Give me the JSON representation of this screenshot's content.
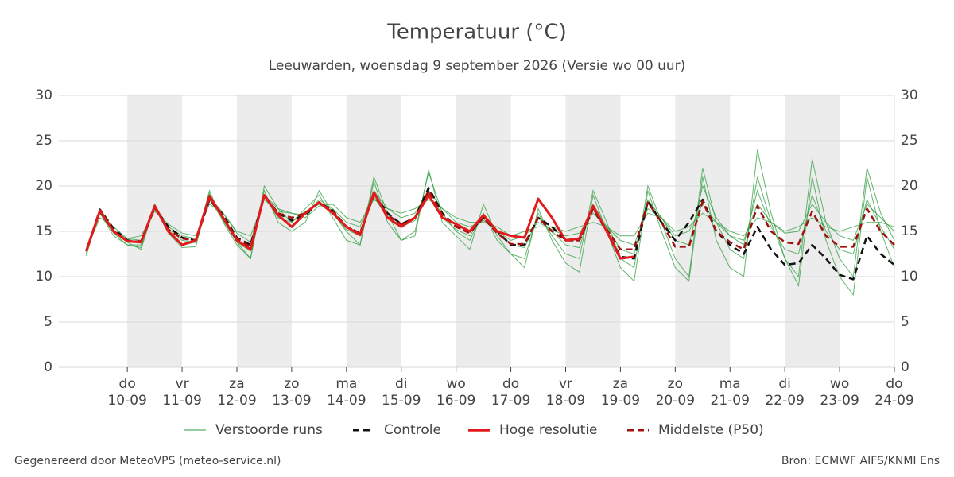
{
  "chart_data": {
    "type": "line",
    "title": "Temperatuur (°C)",
    "subtitle": "Leeuwarden, woensdag  9 september 2026 (Versie wo 00 uur)",
    "footer_left": "Gegenereerd door MeteoVPS (meteo-service.nl)",
    "footer_right": "Bron: ECMWF AIFS/KNMI Ens",
    "grid": true,
    "legend": "bottom",
    "xlim": [
      8.75,
      24
    ],
    "xticks": [
      {
        "value": 10,
        "label": [
          "do",
          "10-09"
        ]
      },
      {
        "value": 11,
        "label": [
          "vr",
          "11-09"
        ]
      },
      {
        "value": 12,
        "label": [
          "za",
          "12-09"
        ]
      },
      {
        "value": 13,
        "label": [
          "zo",
          "13-09"
        ]
      },
      {
        "value": 14,
        "label": [
          "ma",
          "14-09"
        ]
      },
      {
        "value": 15,
        "label": [
          "di",
          "15-09"
        ]
      },
      {
        "value": 16,
        "label": [
          "wo",
          "16-09"
        ]
      },
      {
        "value": 17,
        "label": [
          "do",
          "17-09"
        ]
      },
      {
        "value": 18,
        "label": [
          "vr",
          "18-09"
        ]
      },
      {
        "value": 19,
        "label": [
          "za",
          "19-09"
        ]
      },
      {
        "value": 20,
        "label": [
          "zo",
          "20-09"
        ]
      },
      {
        "value": 21,
        "label": [
          "ma",
          "21-09"
        ]
      },
      {
        "value": 22,
        "label": [
          "di",
          "22-09"
        ]
      },
      {
        "value": 23,
        "label": [
          "wo",
          "23-09"
        ]
      },
      {
        "value": 24,
        "label": [
          "do",
          "24-09"
        ]
      }
    ],
    "ylim": [
      0,
      30
    ],
    "yticks": [
      0,
      5,
      10,
      15,
      20,
      25,
      30
    ],
    "y2lim": [
      0,
      30
    ],
    "y2ticks": [
      0,
      5,
      10,
      15,
      20,
      25,
      30
    ],
    "x": [
      9.25,
      9.5,
      9.75,
      10,
      10.25,
      10.5,
      10.75,
      11,
      11.25,
      11.5,
      11.75,
      12,
      12.25,
      12.5,
      12.75,
      13,
      13.25,
      13.5,
      13.75,
      14,
      14.25,
      14.5,
      14.75,
      15,
      15.25,
      15.5,
      15.75,
      16,
      16.25,
      16.5,
      16.75,
      17,
      17.25,
      17.5,
      17.75,
      18,
      18.25,
      18.5,
      18.75,
      19,
      19.25,
      19.5,
      19.75,
      20,
      20.25,
      20.5,
      20.75,
      21,
      21.25,
      21.5,
      21.75,
      22,
      22.25,
      22.5,
      22.75,
      23,
      23.25,
      23.5,
      23.75,
      24
    ],
    "ensemble": {
      "name": "Verstoorde runs",
      "color": "#2e9e3e",
      "members": [
        [
          12.5,
          17,
          14.8,
          13.5,
          13.2,
          18,
          15,
          13.5,
          13.8,
          19.5,
          16,
          13.5,
          12,
          20,
          17.5,
          16,
          17.5,
          19,
          16.5,
          14,
          13.5,
          21,
          17,
          14,
          15,
          21.5,
          17,
          15,
          14,
          17,
          14,
          12.5,
          12,
          17,
          14.5,
          12.5,
          12,
          19.5,
          16,
          12,
          11,
          20,
          16,
          12,
          10,
          22,
          16,
          13,
          12,
          21,
          16,
          12,
          10,
          23,
          16,
          12,
          10,
          22,
          17,
          14
        ],
        [
          13,
          16.5,
          15.5,
          14.2,
          14.5,
          17.2,
          15.8,
          14.8,
          14.5,
          18,
          17,
          15,
          14.5,
          18.5,
          17.2,
          17,
          16.5,
          17.8,
          18,
          16.5,
          16,
          18.5,
          17.5,
          17,
          17.5,
          18.5,
          17.5,
          16.5,
          16,
          16,
          15.5,
          14.5,
          15,
          15.5,
          15.5,
          15,
          15.5,
          16,
          15.5,
          14.5,
          14.5,
          17,
          16.5,
          15,
          15.5,
          17,
          16,
          15,
          14.5,
          16.5,
          16,
          15,
          15.5,
          16.5,
          15.5,
          15,
          15.5,
          16,
          16,
          15.5
        ],
        [
          12.3,
          17.5,
          15.2,
          13.8,
          13,
          17.8,
          14.8,
          13.2,
          13.3,
          19.2,
          16.2,
          13.8,
          12,
          19.5,
          16,
          15,
          16,
          19.5,
          17,
          15,
          13.5,
          20.5,
          16,
          14,
          14.5,
          21.8,
          16,
          14.5,
          13,
          18,
          14.5,
          12.5,
          11,
          17.5,
          14,
          11.5,
          10.5,
          19,
          15,
          11,
          9.5,
          19.5,
          15,
          11,
          9.5,
          21,
          14,
          11,
          10,
          24,
          17,
          12,
          9,
          21,
          14,
          10,
          8,
          21,
          15,
          11
        ],
        [
          13.2,
          17.2,
          15,
          14.2,
          14,
          17.5,
          15.5,
          14.5,
          14.2,
          18.8,
          17,
          14.8,
          13.8,
          19,
          17.5,
          17,
          16.8,
          18.5,
          17.5,
          16,
          15.5,
          19.5,
          17.5,
          16.5,
          17,
          19.5,
          17.5,
          16,
          15.5,
          16.2,
          15,
          14,
          14.5,
          16,
          15.2,
          14.5,
          14.8,
          17,
          15.5,
          14,
          13.5,
          17.5,
          16.5,
          14.5,
          15,
          18,
          16,
          14.5,
          14,
          18,
          16,
          14.8,
          15,
          18,
          16,
          14.5,
          14,
          18,
          16.5,
          15
        ],
        [
          12.6,
          17,
          14.5,
          13.5,
          13.5,
          18,
          15.3,
          14,
          13.8,
          18.5,
          16.2,
          13.8,
          12.8,
          18.8,
          16.5,
          16,
          17.2,
          18,
          17,
          15.2,
          14.5,
          18.8,
          16.5,
          15.5,
          16.2,
          19.2,
          16.5,
          15.2,
          14.5,
          16.8,
          15,
          13.5,
          13.2,
          16.5,
          15,
          13.5,
          13.2,
          18,
          15.5,
          13,
          12.5,
          18.5,
          16.5,
          14,
          13.5,
          20,
          16.5,
          14.5,
          13.5,
          19.5,
          15.5,
          13,
          12.5,
          19,
          15,
          13,
          12.5,
          18.5,
          15.5,
          13
        ]
      ]
    },
    "series": [
      {
        "name": "Controle",
        "color": "#111111",
        "dash": "dashed",
        "values": [
          12.8,
          17.4,
          15.3,
          14,
          13.8,
          17.6,
          15.5,
          14.3,
          14,
          18.5,
          16.8,
          14.3,
          13.5,
          19,
          17,
          16.2,
          16.8,
          18.2,
          17.3,
          15.5,
          14.8,
          19.2,
          17,
          15.8,
          16.5,
          19.8,
          17,
          15.5,
          15,
          16.5,
          15,
          13.5,
          13.5,
          16.5,
          15.5,
          14,
          14,
          17.5,
          15,
          12.2,
          12,
          18.3,
          16,
          14,
          16,
          18.5,
          15,
          13.5,
          12.5,
          15.5,
          13,
          11.3,
          11.5,
          13.5,
          12,
          10.2,
          9.7,
          14.5,
          12.5,
          11.3
        ]
      },
      {
        "name": "Hoge resolutie",
        "color": "#e3191b",
        "dash": "solid",
        "values": [
          12.8,
          17.3,
          15,
          13.9,
          13.8,
          17.8,
          15,
          13.5,
          14,
          18.9,
          16.5,
          14,
          13,
          19,
          16.8,
          15.5,
          17,
          18.2,
          17,
          15.5,
          14.6,
          19.3,
          16.5,
          15.5,
          16.5,
          19,
          16.5,
          15.8,
          15,
          16.8,
          15,
          14.5,
          14.3,
          18.6,
          16.5,
          14,
          14.2,
          17.8,
          15,
          12,
          12.2,
          null,
          null,
          null,
          null,
          null,
          null,
          null,
          null,
          null,
          null,
          null,
          null,
          null,
          null,
          null,
          null,
          null,
          null,
          null
        ]
      },
      {
        "name": "Middelste (P50)",
        "color": "#a01010",
        "dash": "dashed",
        "values": [
          12.8,
          17.2,
          15,
          13.9,
          13.9,
          17.6,
          15.2,
          14.2,
          14,
          18.6,
          16.5,
          14.2,
          13.3,
          18.9,
          17,
          16.5,
          17,
          18.2,
          17.2,
          15.5,
          14.8,
          19,
          16.8,
          15.8,
          16.5,
          19.5,
          16.8,
          15.5,
          14.8,
          16.5,
          14.8,
          13.6,
          13.6,
          16.5,
          15,
          14,
          14,
          17.5,
          15.2,
          13,
          13,
          18.2,
          16,
          13.3,
          13.3,
          18.3,
          15,
          13.8,
          13,
          17.8,
          15,
          13.8,
          13.6,
          17.2,
          14.5,
          13.3,
          13.3,
          17.5,
          15,
          13.5
        ]
      }
    ]
  }
}
